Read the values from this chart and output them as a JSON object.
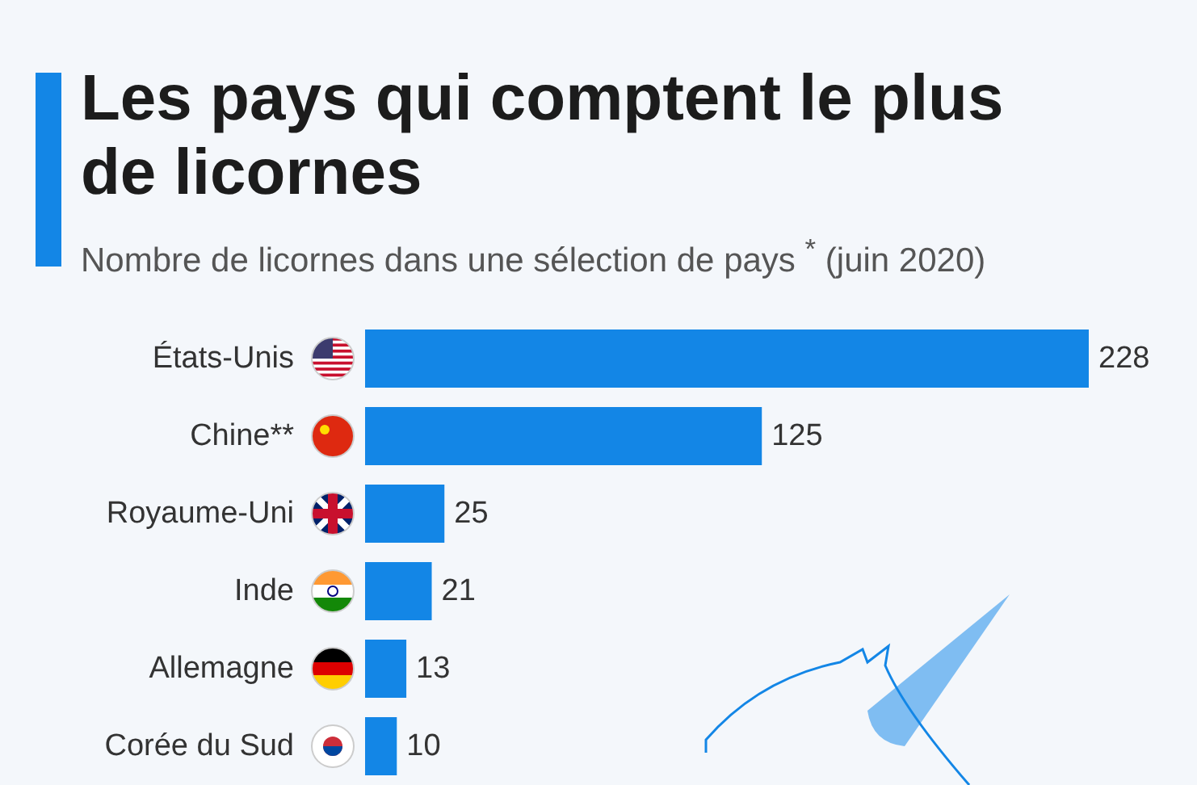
{
  "chart_data": {
    "type": "bar",
    "orientation": "horizontal",
    "title": "Les pays qui comptent le plus de licornes",
    "subtitle": "Nombre de licornes dans une sélection de pays $^{*}$ (juin 2020)",
    "categories": [
      "États-Unis",
      "Chine**",
      "Royaume-Uni",
      "Inde",
      "Allemagne",
      "Corée du Sud"
    ],
    "values": [
      228,
      125,
      25,
      21,
      13,
      10
    ],
    "color": "#1386e6",
    "data_labels": true
  }
}
